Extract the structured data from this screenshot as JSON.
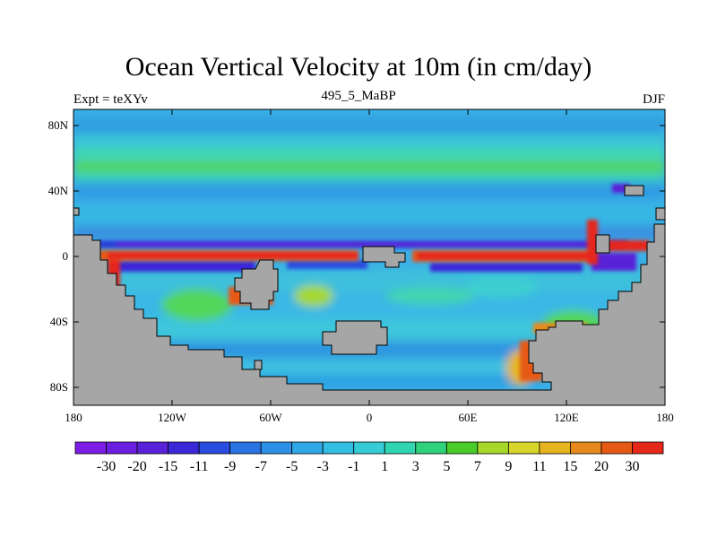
{
  "title": "Ocean Vertical Velocity at 10m (in cm/day)",
  "left_subtitle": "Expt = teXYv",
  "center_subtitle": "495_5_MaBP",
  "right_subtitle": "DJF",
  "axes": {
    "y_ticks": [
      "80N",
      "40N",
      "0",
      "40S",
      "80S"
    ],
    "x_ticks": [
      "180",
      "120W",
      "60W",
      "0",
      "60E",
      "120E",
      "180"
    ]
  },
  "colors": {
    "land": "#a6a6a6",
    "background_field": "#3ab0e6",
    "strong_up": "#e60e0e",
    "strong_down": "#7a10e6"
  },
  "colorbar": {
    "labels": [
      "-30",
      "-20",
      "-15",
      "-11",
      "-9",
      "-7",
      "-5",
      "-3",
      "-1",
      "1",
      "3",
      "5",
      "7",
      "9",
      "11",
      "15",
      "20",
      "30"
    ],
    "colors": [
      "#7d1de6",
      "#6a1fe0",
      "#5a22d8",
      "#3a28d8",
      "#2a4de0",
      "#2a73e3",
      "#2b90e6",
      "#2ea8e6",
      "#32bde3",
      "#35ccd6",
      "#2fd6b0",
      "#2fd27a",
      "#4acc2a",
      "#a6d82a",
      "#d8d62a",
      "#e6b41e",
      "#e68a1e",
      "#e65a16",
      "#e6281a"
    ]
  }
}
